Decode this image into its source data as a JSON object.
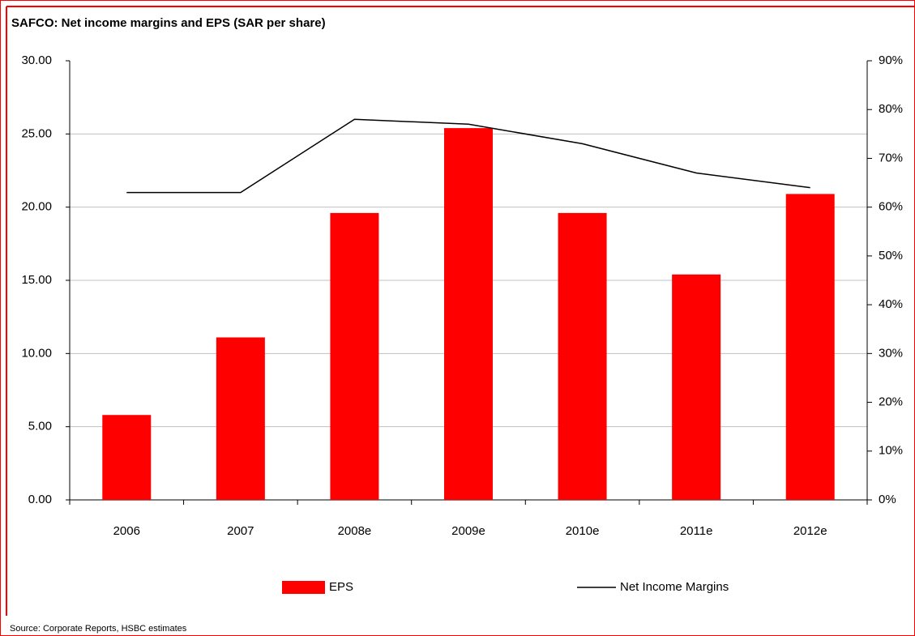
{
  "chart_data": {
    "type": "bar_line",
    "title": "SAFCO: Net income margins and EPS (SAR per share)",
    "source": "Source: Corporate Reports, HSBC estimates",
    "categories": [
      "2006",
      "2007",
      "2008e",
      "2009e",
      "2010e",
      "2011e",
      "2012e"
    ],
    "series": [
      {
        "name": "EPS",
        "type": "bar",
        "color": "#ff0000",
        "values": [
          5.8,
          11.1,
          19.6,
          25.4,
          19.6,
          15.4,
          20.9
        ]
      },
      {
        "name": "Net Income Margins",
        "type": "line",
        "axis": "y2",
        "color": "#000000",
        "values": [
          63,
          63,
          78,
          77,
          73,
          67,
          64
        ]
      }
    ],
    "ylim": [
      0,
      30
    ],
    "yticks": [
      {
        "value": 0,
        "label": "0.00"
      },
      {
        "value": 5,
        "label": "5.00"
      },
      {
        "value": 10,
        "label": "10.00"
      },
      {
        "value": 15,
        "label": "15.00"
      },
      {
        "value": 20,
        "label": "20.00"
      },
      {
        "value": 25,
        "label": "25.00"
      },
      {
        "value": 30,
        "label": "30.00"
      }
    ],
    "y2lim": [
      0,
      90
    ],
    "y2ticks": [
      {
        "value": 0,
        "label": "0%"
      },
      {
        "value": 10,
        "label": "10%"
      },
      {
        "value": 20,
        "label": "20%"
      },
      {
        "value": 30,
        "label": "30%"
      },
      {
        "value": 40,
        "label": "40%"
      },
      {
        "value": 50,
        "label": "50%"
      },
      {
        "value": 60,
        "label": "60%"
      },
      {
        "value": 70,
        "label": "70%"
      },
      {
        "value": 80,
        "label": "80%"
      },
      {
        "value": 90,
        "label": "90%"
      }
    ],
    "grid": true
  }
}
